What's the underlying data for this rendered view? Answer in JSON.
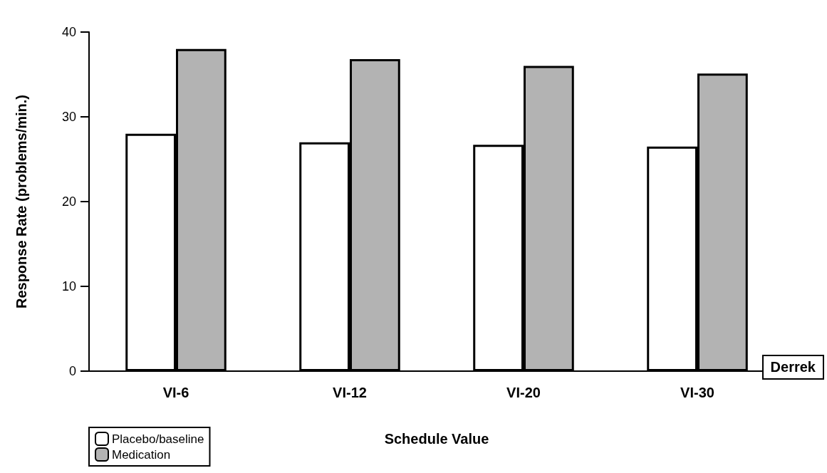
{
  "chart_data": {
    "type": "bar",
    "xlabel": "Schedule Value",
    "ylabel": "Response Rate (problems/min.)",
    "categories": [
      "VI-6",
      "VI-12",
      "VI-20",
      "VI-30"
    ],
    "series": [
      {
        "name": "Placebo/baseline",
        "color": "#ffffff",
        "values": [
          28,
          27,
          26.7,
          26.5
        ]
      },
      {
        "name": "Medication",
        "color": "#b3b3b3",
        "values": [
          38,
          36.8,
          36,
          35.1
        ]
      }
    ],
    "ylim": [
      0,
      40
    ],
    "yticks": [
      0,
      10,
      20,
      30,
      40
    ],
    "grid": false,
    "legend": "bottom left",
    "annotations": [
      "Derrek"
    ]
  }
}
